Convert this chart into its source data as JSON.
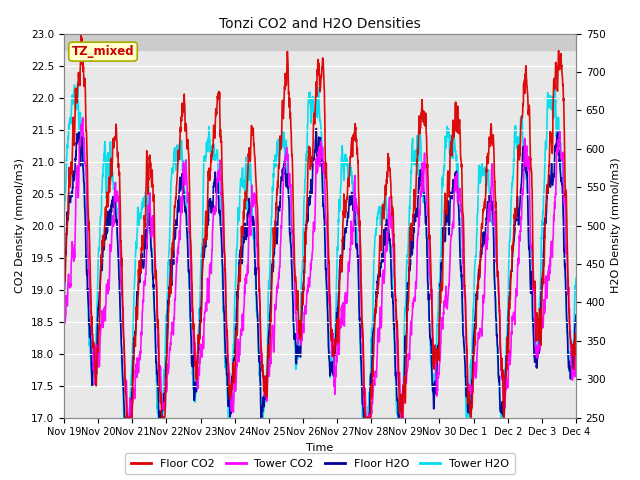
{
  "title": "Tonzi CO2 and H2O Densities",
  "xlabel": "Time",
  "ylabel_left": "CO2 Density (mmol/m3)",
  "ylabel_right": "H2O Density (mmol/m3)",
  "ylim_left": [
    17.0,
    23.0
  ],
  "ylim_right": [
    250,
    750
  ],
  "yticks_left": [
    17.0,
    17.5,
    18.0,
    18.5,
    19.0,
    19.5,
    20.0,
    20.5,
    21.0,
    21.5,
    22.0,
    22.5,
    23.0
  ],
  "yticks_right": [
    250,
    300,
    350,
    400,
    450,
    500,
    550,
    600,
    650,
    700,
    750
  ],
  "colors": {
    "floor_co2": "#DD0000",
    "tower_co2": "#FF00FF",
    "floor_h2o": "#000099",
    "tower_h2o": "#00DDEE"
  },
  "linewidths": {
    "floor_co2": 1.2,
    "tower_co2": 1.2,
    "floor_h2o": 1.2,
    "tower_h2o": 1.2
  },
  "legend_labels": [
    "Floor CO2",
    "Tower CO2",
    "Floor H2O",
    "Tower H2O"
  ],
  "tz_label": "TZ_mixed",
  "tz_label_color": "#CC0000",
  "tz_box_facecolor": "#FFFFCC",
  "tz_box_edgecolor": "#AAAA00",
  "background_color": "#FFFFFF",
  "plot_bg_color": "#E8E8E8",
  "grid_color": "#FFFFFF",
  "shaded_top_color": "#CCCCCC",
  "n_points": 2160,
  "x_tick_labels": [
    "Nov 19",
    "Nov 20",
    "Nov 21",
    "Nov 22",
    "Nov 23",
    "Nov 24",
    "Nov 25",
    "Nov 26",
    "Nov 27",
    "Nov 28",
    "Nov 29",
    "Nov 30",
    "Dec 1",
    "Dec 2",
    "Dec 3",
    "Dec 4"
  ],
  "x_tick_positions": [
    0,
    1,
    2,
    3,
    4,
    5,
    6,
    7,
    8,
    9,
    10,
    11,
    12,
    13,
    14,
    15
  ]
}
